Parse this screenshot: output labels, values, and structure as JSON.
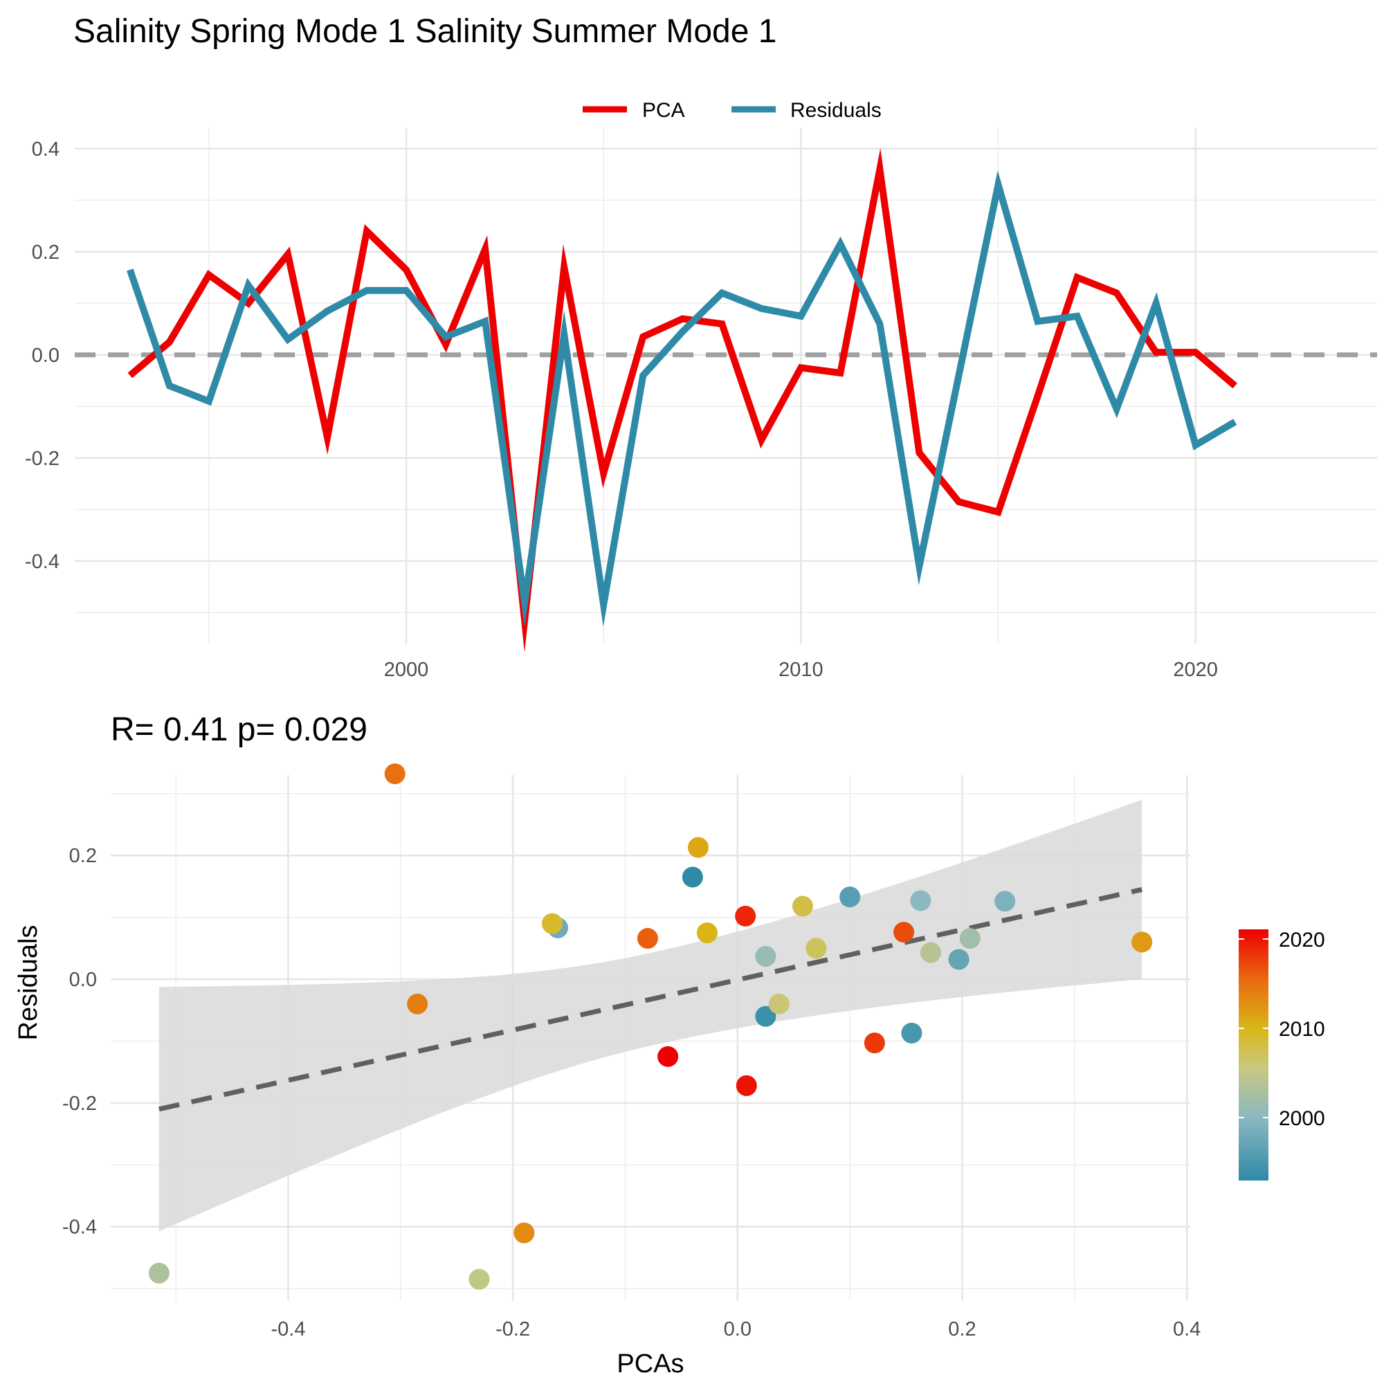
{
  "title": "Salinity Spring Mode 1 Salinity Summer Mode 1",
  "chart_data": [
    {
      "type": "line",
      "title": "",
      "legend": {
        "position": "top",
        "entries": [
          "PCA",
          "Residuals"
        ]
      },
      "x_ticks": [
        "2000",
        "2010",
        "2020"
      ],
      "y_ticks": [
        "0.4",
        "0.2",
        "0.0",
        "-0.2",
        "-0.4"
      ],
      "xlim": [
        1991.6,
        2024.6
      ],
      "ylim": [
        -0.56,
        0.44
      ],
      "reference_line": {
        "y": 0.0,
        "style": "dashed",
        "color": "#a0a0a0"
      },
      "x": [
        1993,
        1994,
        1995,
        1996,
        1997,
        1998,
        1999,
        2000,
        2001,
        2002,
        2003,
        2004,
        2005,
        2006,
        2007,
        2008,
        2009,
        2010,
        2011,
        2012,
        2013,
        2014,
        2015,
        2016,
        2017,
        2018,
        2019,
        2020,
        2021
      ],
      "series": [
        {
          "name": "PCA",
          "color": "#ee0000",
          "values": [
            -0.04,
            0.025,
            0.155,
            0.1,
            0.195,
            -0.16,
            0.24,
            0.165,
            0.02,
            0.205,
            -0.515,
            0.17,
            -0.23,
            0.035,
            0.07,
            0.06,
            -0.165,
            -0.025,
            -0.035,
            0.36,
            -0.19,
            -0.285,
            -0.305,
            -0.08,
            0.15,
            0.12,
            0.005,
            0.005,
            -0.06
          ]
        },
        {
          "name": "Residuals",
          "color": "#2e8aa6",
          "values": [
            0.165,
            -0.06,
            -0.09,
            0.135,
            0.03,
            0.085,
            0.125,
            0.125,
            0.035,
            0.065,
            -0.48,
            0.04,
            -0.485,
            -0.04,
            0.045,
            0.12,
            0.09,
            0.075,
            0.215,
            0.06,
            -0.41,
            -0.04,
            0.33,
            0.065,
            0.075,
            -0.105,
            0.1,
            -0.175,
            -0.13
          ]
        }
      ]
    },
    {
      "type": "scatter",
      "title": "R= 0.41  p= 0.029",
      "xlabel": "PCAs",
      "ylabel": "Residuals",
      "x_ticks": [
        "-0.4",
        "-0.2",
        "0.0",
        "0.2",
        "0.4"
      ],
      "y_ticks": [
        "0.2",
        "0.0",
        "-0.2",
        "-0.4"
      ],
      "xlim": [
        -0.558,
        0.403
      ],
      "ylim": [
        -0.52,
        0.33
      ],
      "colorbar": {
        "labels": [
          "2020",
          "2010",
          "2000"
        ],
        "range": [
          1993,
          2021
        ],
        "colors": [
          "#2e8aa6",
          "#b8c8a0",
          "#d8c020",
          "#e88010",
          "#ee0000"
        ]
      },
      "fit": {
        "x0": -0.515,
        "x1": 0.36,
        "y0": -0.21,
        "y1": 0.145,
        "ci_lower": [
          -0.405,
          -0.08,
          0.0
        ],
        "ci_upper": [
          -0.01,
          -0.005,
          0.29
        ],
        "ci_x": [
          -0.515,
          0.0,
          0.36
        ]
      },
      "points": [
        {
          "x": -0.04,
          "y": 0.165,
          "year": 1993
        },
        {
          "x": 0.025,
          "y": -0.06,
          "year": 1994
        },
        {
          "x": 0.155,
          "y": -0.087,
          "year": 1995
        },
        {
          "x": 0.1,
          "y": 0.133,
          "year": 1996
        },
        {
          "x": 0.197,
          "y": 0.032,
          "year": 1997
        },
        {
          "x": -0.16,
          "y": 0.083,
          "year": 1998
        },
        {
          "x": 0.238,
          "y": 0.126,
          "year": 1999
        },
        {
          "x": 0.163,
          "y": 0.127,
          "year": 2000
        },
        {
          "x": 0.025,
          "y": 0.037,
          "year": 2001
        },
        {
          "x": 0.207,
          "y": 0.066,
          "year": 2002
        },
        {
          "x": -0.515,
          "y": -0.475,
          "year": 2003
        },
        {
          "x": 0.172,
          "y": 0.043,
          "year": 2004
        },
        {
          "x": -0.23,
          "y": -0.485,
          "year": 2005
        },
        {
          "x": 0.037,
          "y": -0.04,
          "year": 2006
        },
        {
          "x": 0.07,
          "y": 0.05,
          "year": 2007
        },
        {
          "x": 0.058,
          "y": 0.118,
          "year": 2008
        },
        {
          "x": -0.165,
          "y": 0.09,
          "year": 2009
        },
        {
          "x": -0.027,
          "y": 0.075,
          "year": 2010
        },
        {
          "x": -0.035,
          "y": 0.213,
          "year": 2011
        },
        {
          "x": 0.36,
          "y": 0.06,
          "year": 2012
        },
        {
          "x": -0.19,
          "y": -0.41,
          "year": 2013
        },
        {
          "x": -0.285,
          "y": -0.04,
          "year": 2014
        },
        {
          "x": -0.305,
          "y": 0.332,
          "year": 2015
        },
        {
          "x": -0.08,
          "y": 0.066,
          "year": 2016
        },
        {
          "x": 0.148,
          "y": 0.076,
          "year": 2017
        },
        {
          "x": 0.122,
          "y": -0.103,
          "year": 2018
        },
        {
          "x": 0.007,
          "y": 0.102,
          "year": 2019
        },
        {
          "x": 0.008,
          "y": -0.172,
          "year": 2020
        },
        {
          "x": -0.062,
          "y": -0.125,
          "year": 2021
        }
      ]
    }
  ]
}
